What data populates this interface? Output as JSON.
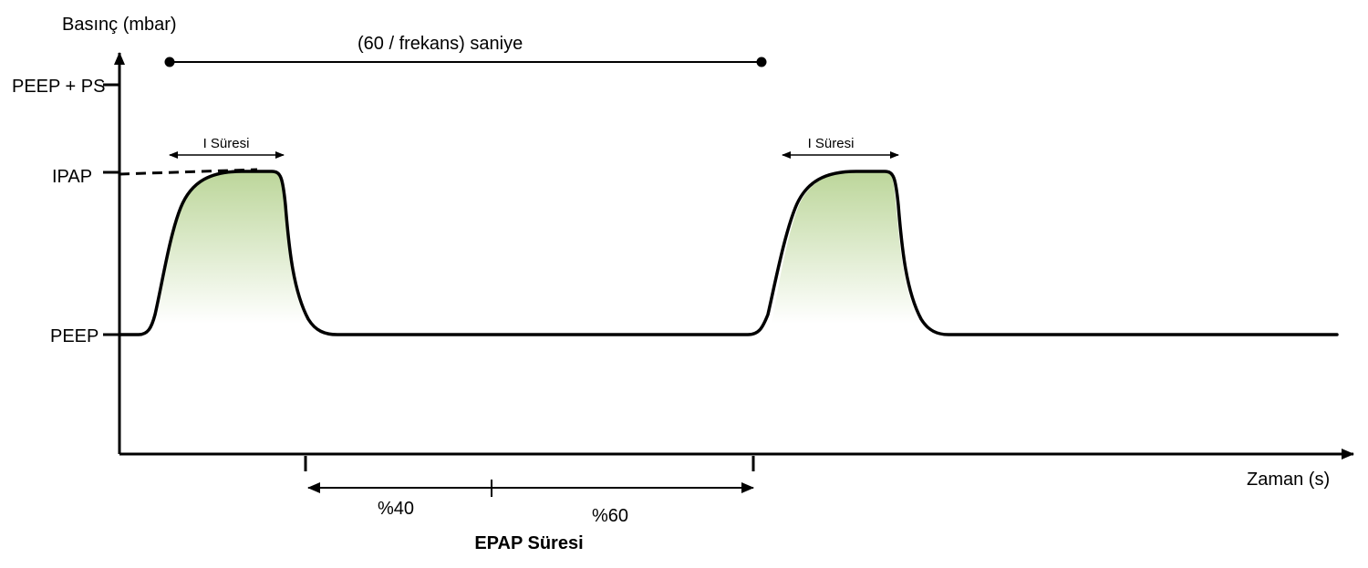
{
  "diagram": {
    "y_axis_label": "Basınç (mbar)",
    "x_axis_label": "Zaman (s)",
    "levels": {
      "peep_ps": "PEEP + PS",
      "ipap": "IPAP",
      "peep": "PEEP"
    },
    "cycle_label": "(60 / frekans) saniye",
    "i_time_label_1": "I Süresi",
    "i_time_label_2": "I Süresi",
    "epap": {
      "part1": "%40",
      "part2": "%60",
      "title": "EPAP Süresi"
    },
    "colors": {
      "fill_top": "#bcd69a",
      "line": "#000000"
    }
  }
}
